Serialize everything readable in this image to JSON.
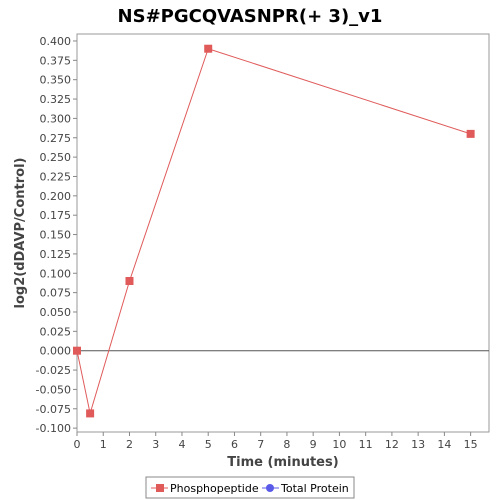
{
  "chart_data": {
    "type": "line",
    "title": "NS#PGCQVASNPR(+ 3)_v1",
    "xlabel": "Time (minutes)",
    "ylabel": "log2(dDAVP/Control)",
    "xlim": [
      0,
      15.7
    ],
    "ylim": [
      -0.105,
      0.409
    ],
    "x_ticks": [
      0,
      1,
      2,
      3,
      4,
      5,
      6,
      7,
      8,
      9,
      10,
      11,
      12,
      13,
      14,
      15
    ],
    "y_ticks": [
      -0.1,
      -0.075,
      -0.05,
      -0.025,
      0,
      0.025,
      0.05,
      0.075,
      0.1,
      0.125,
      0.15,
      0.175,
      0.2,
      0.225,
      0.25,
      0.275,
      0.3,
      0.325,
      0.35,
      0.375,
      0.4
    ],
    "grid": false,
    "zero_line": true,
    "legend_position": "bottom",
    "series": [
      {
        "name": "Phosphopeptide",
        "color": "#e05a5a",
        "marker": "square",
        "x": [
          0,
          0.5,
          2,
          5,
          15
        ],
        "y": [
          0,
          -0.081,
          0.09,
          0.39,
          0.28
        ]
      },
      {
        "name": "Total Protein",
        "color": "#5a5ae8",
        "marker": "circle",
        "x": [],
        "y": []
      }
    ]
  }
}
